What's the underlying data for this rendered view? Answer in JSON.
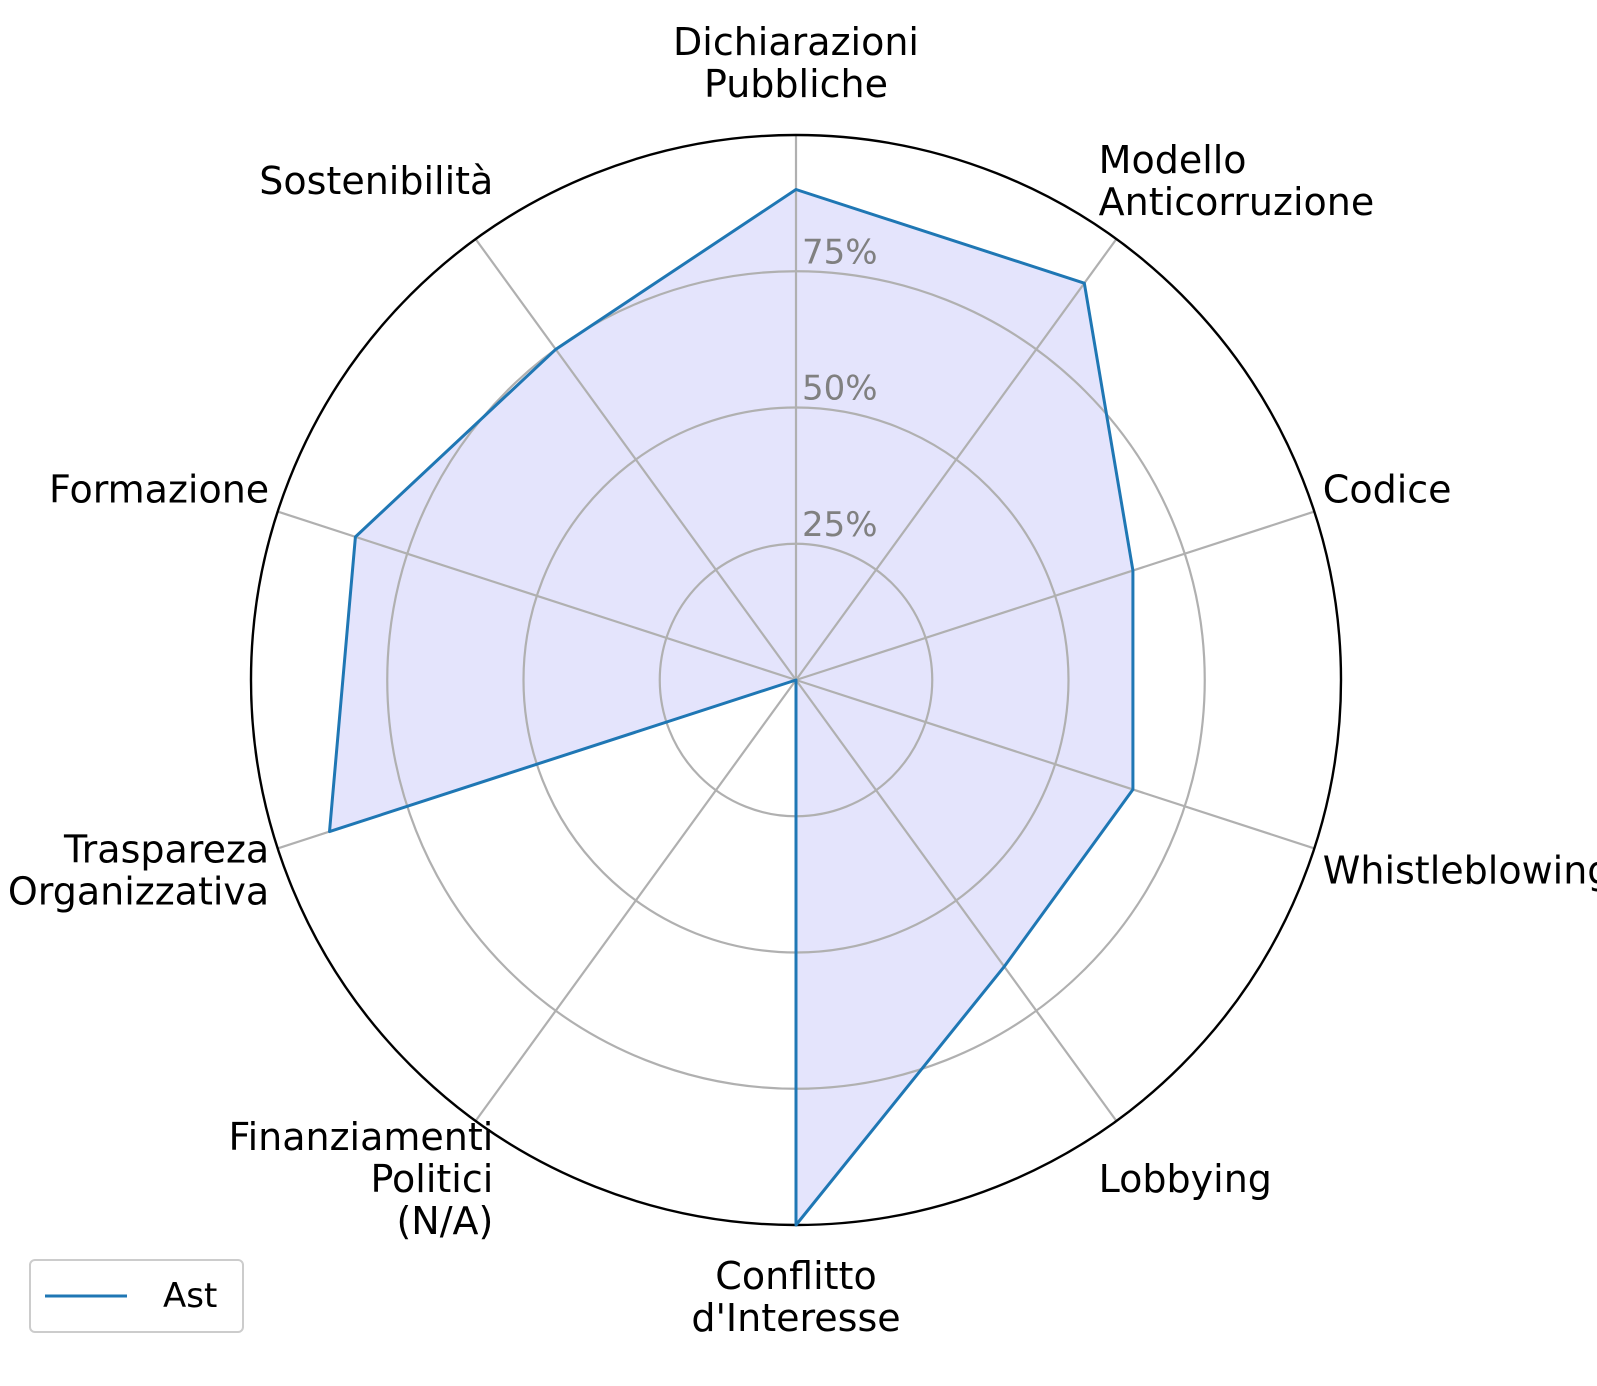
{
  "chart_data": {
    "type": "radar",
    "categories": [
      "Dichiarazioni\nPubbliche",
      "Modello\nAnticorruzione",
      "Codice",
      "Whistleblowing",
      "Lobbying",
      "Conflitto\nd'Interesse",
      "Finanziamenti\nPolitici\n(N/A)",
      "Traspareza\nOrganizzativa",
      "Formazione",
      "Sostenibilità"
    ],
    "series": [
      {
        "name": "Ast",
        "values": [
          90,
          90,
          65,
          65,
          65,
          100,
          0,
          90,
          85,
          75
        ]
      }
    ],
    "rlim": [
      0,
      100
    ],
    "rticks": [
      25,
      50,
      75,
      100
    ],
    "rtick_labels": [
      "25%",
      "50%",
      "75%"
    ],
    "grid": true,
    "legend": "bottom-left",
    "colors": {
      "line": "#1f77b4",
      "fill": "#e4e4fc",
      "grid": "#b0b0b0",
      "outer": "#000000",
      "tick_text": "#808080"
    }
  }
}
